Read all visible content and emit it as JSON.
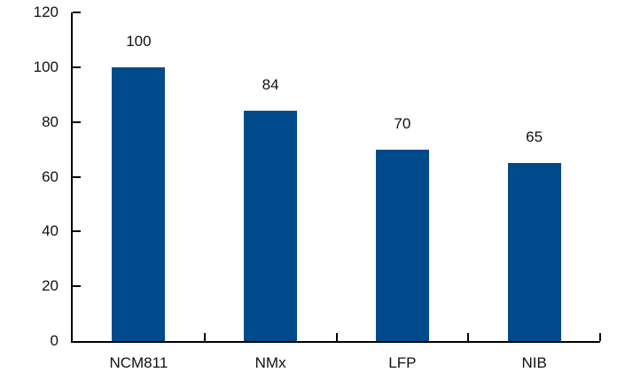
{
  "chart_data": {
    "type": "bar",
    "title": "",
    "xlabel": "",
    "ylabel": "",
    "categories": [
      "NCM811",
      "NMx",
      "LFP",
      "NIB"
    ],
    "values": [
      100,
      84,
      70,
      65
    ],
    "data_labels": [
      "100",
      "84",
      "70",
      "65"
    ],
    "ylim": [
      0,
      120
    ],
    "y_ticks": [
      0,
      20,
      40,
      60,
      80,
      100,
      120
    ],
    "y_tick_labels": [
      "0",
      "20",
      "40",
      "60",
      "80",
      "100",
      "120"
    ],
    "grid": false,
    "legend": null,
    "bar_color": "#004A8C",
    "axis_color": "#000000",
    "text_color": "#111111",
    "background_color": "#FFFFFF"
  }
}
